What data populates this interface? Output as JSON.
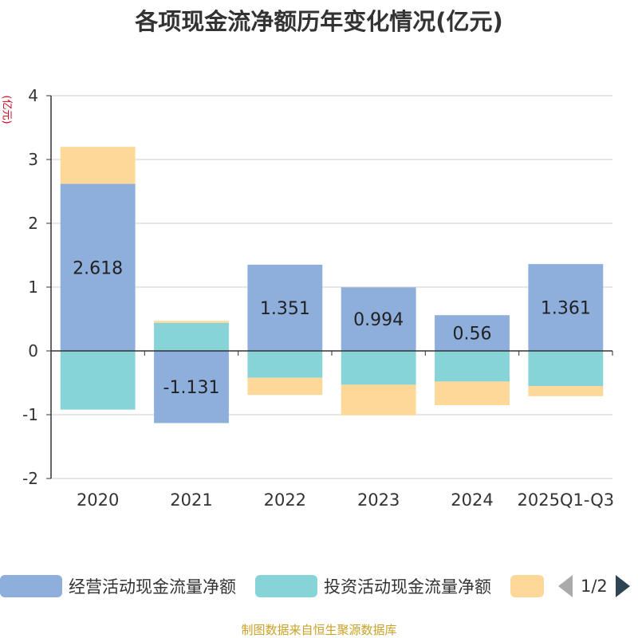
{
  "title": "各项现金流净额历年变化情况(亿元)",
  "unit_label": "(亿元)",
  "source": "制图数据来自恒生聚源数据库",
  "legend": {
    "items": [
      {
        "label": "经营活动现金流量净额",
        "color": "#8eaedc"
      },
      {
        "label": "投资活动现金流量净额",
        "color": "#86d4d8"
      },
      {
        "label": "",
        "color": "#fdd898"
      }
    ],
    "page": "1/2"
  },
  "chart_data": {
    "type": "bar",
    "stacked": true,
    "categories": [
      "2020",
      "2021",
      "2022",
      "2023",
      "2024",
      "2025Q1-Q3"
    ],
    "ylim": [
      -2,
      4
    ],
    "yticks": [
      -2,
      -1,
      0,
      1,
      2,
      3,
      4
    ],
    "series": [
      {
        "name": "经营活动现金流量净额",
        "color": "#8eaedc",
        "values": [
          2.618,
          -1.131,
          1.351,
          0.994,
          0.56,
          1.361
        ],
        "labels": [
          "2.618",
          "-1.131",
          "1.351",
          "0.994",
          "0.56",
          "1.361"
        ]
      },
      {
        "name": "投资活动现金流量净额",
        "color": "#86d4d8",
        "values": [
          -0.92,
          0.44,
          -0.42,
          -0.53,
          -0.48,
          -0.55
        ]
      },
      {
        "name": "",
        "color": "#fdd898",
        "values": [
          0.58,
          0.03,
          -0.27,
          -0.48,
          -0.37,
          -0.16
        ]
      }
    ]
  }
}
